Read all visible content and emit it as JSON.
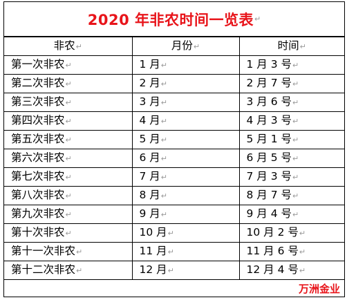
{
  "title": "2020 年非农时间一览表",
  "para_mark": "↵",
  "headers": [
    "非农",
    "月份",
    "时间"
  ],
  "rows": [
    {
      "name": "第一次非农",
      "month": "1 月",
      "date": "1 月 3 号"
    },
    {
      "name": "第二次非农",
      "month": "2 月",
      "date": "2 月 7 号"
    },
    {
      "name": "第三次非农",
      "month": "3 月",
      "date": "3 月 6 号"
    },
    {
      "name": "第四次非农",
      "month": "4 月",
      "date": "4 月 3 号"
    },
    {
      "name": "第五次非农",
      "month": "5 月",
      "date": "5 月 1 号"
    },
    {
      "name": "第六次非农",
      "month": "6 月",
      "date": "6 月 5 号"
    },
    {
      "name": "第七次非农",
      "month": "7 月",
      "date": "7 月 3 号"
    },
    {
      "name": "第八次非农",
      "month": "8 月",
      "date": "8 月 7 号"
    },
    {
      "name": "第九次非农",
      "month": "9 月",
      "date": "9 月 4 号"
    },
    {
      "name": "第十次非农",
      "month": "10 月",
      "date": "10 月 2 号"
    },
    {
      "name": "第十一次非农",
      "month": "11 月",
      "date": "11 月 6 号"
    },
    {
      "name": "第十二次非农",
      "month": "12 月",
      "date": "12 月 4 号"
    }
  ],
  "brand": "万洲金业",
  "colors": {
    "title": "#e8141a",
    "brand": "#e8141a",
    "border": "#000000"
  }
}
